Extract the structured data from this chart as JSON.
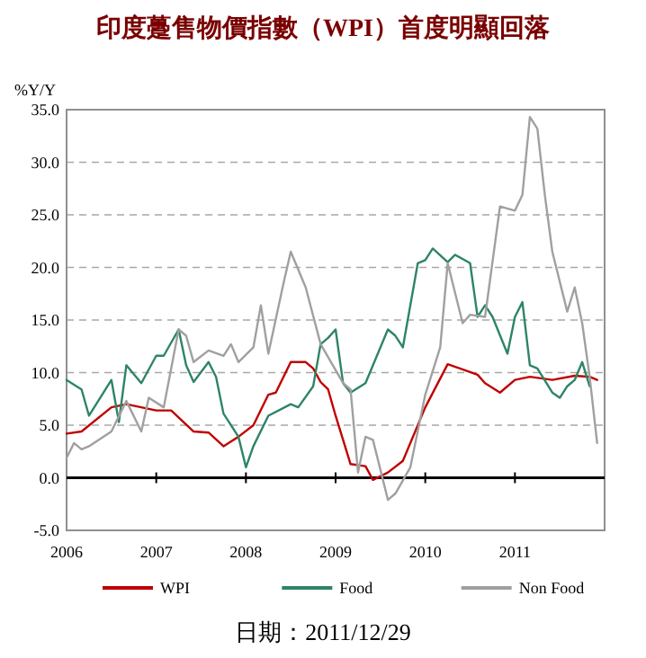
{
  "chart_data": {
    "type": "line",
    "title": "印度躉售物價指數（WPI）首度明顯回落",
    "ylabel": "%Y/Y",
    "annotations": [
      "日期：2011/12/29"
    ],
    "xlim": [
      "2006-01",
      "2012-01"
    ],
    "xticks": [
      {
        "value": "2006-01",
        "label": "2006"
      },
      {
        "value": "2007-01",
        "label": "2007"
      },
      {
        "value": "2008-01",
        "label": "2008"
      },
      {
        "value": "2009-01",
        "label": "2009"
      },
      {
        "value": "2010-01",
        "label": "2010"
      },
      {
        "value": "2011-01",
        "label": "2011"
      }
    ],
    "ylim": [
      -5,
      35
    ],
    "yticks": [
      {
        "value": -5,
        "label": "-5.0"
      },
      {
        "value": 0,
        "label": "0.0"
      },
      {
        "value": 5,
        "label": "5.0"
      },
      {
        "value": 10,
        "label": "10.0"
      },
      {
        "value": 15,
        "label": "15.0"
      },
      {
        "value": 20,
        "label": "20.0"
      },
      {
        "value": 25,
        "label": "25.0"
      },
      {
        "value": 30,
        "label": "30.0"
      },
      {
        "value": 35,
        "label": "35.0"
      }
    ],
    "grid": "y",
    "legend": "bottom",
    "marker": "none",
    "line_style": "solid",
    "ref_lines": [
      {
        "axis": "y",
        "value": 0,
        "color": "#000000"
      }
    ],
    "series": [
      {
        "name": "WPI",
        "color": "#c00000",
        "x": [
          "2006-01",
          "2006-03",
          "2006-07",
          "2006-09",
          "2006-11",
          "2007-01",
          "2007-03",
          "2007-06",
          "2007-08",
          "2007-10",
          "2007-12",
          "2008-02",
          "2008-04",
          "2008-05",
          "2008-07",
          "2008-09",
          "2008-10",
          "2008-11",
          "2008-12",
          "2009-01",
          "2009-03",
          "2009-05",
          "2009-06",
          "2009-08",
          "2009-10",
          "2010-01",
          "2010-04",
          "2010-08",
          "2010-09",
          "2010-11",
          "2011-01",
          "2011-03",
          "2011-06",
          "2011-09",
          "2011-11",
          "2011-12"
        ],
        "values": [
          4.2,
          4.4,
          6.7,
          7.0,
          6.7,
          6.4,
          6.4,
          4.4,
          4.3,
          3.0,
          3.9,
          5.0,
          7.9,
          8.1,
          11.0,
          11.0,
          10.4,
          9.1,
          8.4,
          5.9,
          1.3,
          1.1,
          -0.2,
          0.5,
          1.6,
          6.7,
          10.8,
          9.8,
          9.0,
          8.1,
          9.3,
          9.6,
          9.3,
          9.7,
          9.6,
          9.3
        ]
      },
      {
        "name": "Food",
        "color": "#2e8468",
        "x": [
          "2006-01",
          "2006-03",
          "2006-04",
          "2006-07",
          "2006-08",
          "2006-09",
          "2006-11",
          "2007-01",
          "2007-02",
          "2007-04",
          "2007-05",
          "2007-06",
          "2007-08",
          "2007-09",
          "2007-10",
          "2007-12",
          "2008-01",
          "2008-02",
          "2008-04",
          "2008-07",
          "2008-08",
          "2008-10",
          "2008-11",
          "2008-12",
          "2009-01",
          "2009-02",
          "2009-03",
          "2009-05",
          "2009-08",
          "2009-09",
          "2009-10",
          "2009-12",
          "2010-01",
          "2010-02",
          "2010-04",
          "2010-05",
          "2010-07",
          "2010-08",
          "2010-09",
          "2010-10",
          "2010-12",
          "2011-01",
          "2011-02",
          "2011-03",
          "2011-04",
          "2011-06",
          "2011-07",
          "2011-08",
          "2011-09",
          "2011-10",
          "2011-11"
        ],
        "values": [
          9.3,
          8.4,
          5.9,
          9.3,
          5.3,
          10.7,
          9.0,
          11.6,
          11.6,
          14.1,
          10.7,
          9.1,
          11.0,
          9.6,
          6.1,
          3.9,
          1.0,
          3.0,
          5.9,
          7.0,
          6.7,
          8.7,
          12.7,
          13.3,
          14.1,
          9.0,
          8.1,
          9.0,
          14.1,
          13.5,
          12.4,
          20.4,
          20.7,
          21.8,
          20.5,
          21.2,
          20.4,
          15.3,
          16.4,
          15.3,
          11.8,
          15.3,
          16.7,
          10.7,
          10.4,
          8.1,
          7.6,
          8.7,
          9.3,
          11.0,
          8.7
        ]
      },
      {
        "name": "Non Food",
        "color": "#a0a0a0",
        "x": [
          "2006-01",
          "2006-02",
          "2006-03",
          "2006-04",
          "2006-07",
          "2006-09",
          "2006-11",
          "2006-12",
          "2007-02",
          "2007-04",
          "2007-05",
          "2007-06",
          "2007-08",
          "2007-10",
          "2007-11",
          "2007-12",
          "2008-02",
          "2008-03",
          "2008-04",
          "2008-06",
          "2008-07",
          "2008-09",
          "2008-11",
          "2009-02",
          "2009-03",
          "2009-04",
          "2009-05",
          "2009-06",
          "2009-08",
          "2009-09",
          "2009-11",
          "2010-01",
          "2010-03",
          "2010-04",
          "2010-06",
          "2010-07",
          "2010-09",
          "2010-11",
          "2011-01",
          "2011-02",
          "2011-03",
          "2011-04",
          "2011-05",
          "2011-06",
          "2011-08",
          "2011-09",
          "2011-10",
          "2011-11",
          "2011-12"
        ],
        "values": [
          1.9,
          3.3,
          2.7,
          3.0,
          4.4,
          7.3,
          4.4,
          7.6,
          6.7,
          14.1,
          13.5,
          11.0,
          12.1,
          11.6,
          12.7,
          11.0,
          12.4,
          16.4,
          11.8,
          18.4,
          21.5,
          18.1,
          12.7,
          9.0,
          8.4,
          0.5,
          3.9,
          3.6,
          -2.1,
          -1.5,
          1.0,
          7.9,
          12.4,
          20.4,
          14.7,
          15.5,
          15.3,
          25.8,
          25.4,
          26.9,
          34.3,
          33.2,
          26.9,
          21.5,
          15.8,
          18.1,
          14.7,
          9.6,
          3.3
        ]
      }
    ]
  }
}
